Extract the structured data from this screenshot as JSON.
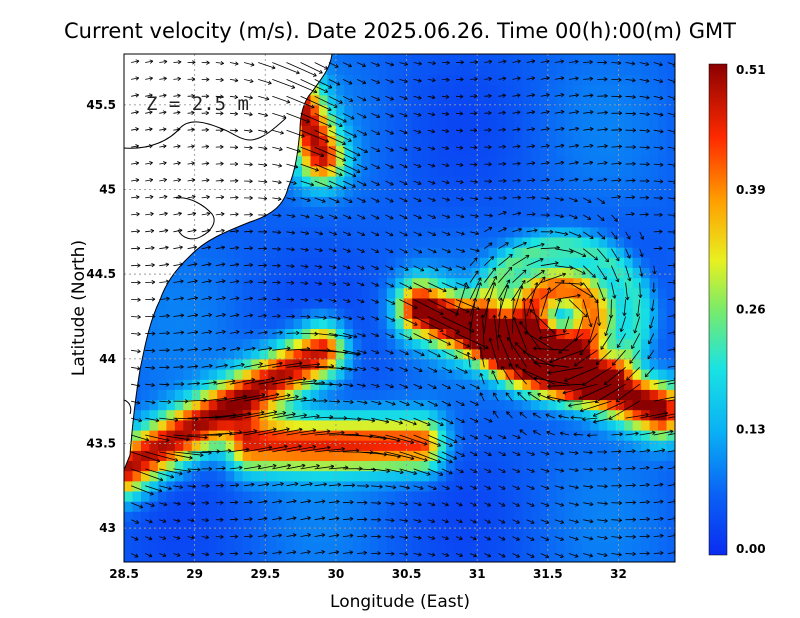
{
  "title": "Current velocity (m/s). Date 2025.06.26. Time 00(h):00(m) GMT",
  "depth_label": "Z = 2.5 m",
  "colors": {
    "low": "#0a4cf0",
    "mid": "#19e3e3",
    "high": "#ffa000",
    "max": "#8b0000",
    "land": "#ffffff",
    "coastline": "#000000",
    "grid": "#9a9a9a"
  },
  "chart_data": {
    "type": "heatmap",
    "xlabel": "Longitude (East)",
    "ylabel": "Latitude (North)",
    "xlim": [
      28.5,
      32.4
    ],
    "ylim": [
      42.8,
      45.8
    ],
    "xticks": [
      "28.5",
      "29",
      "29.5",
      "30",
      "30.5",
      "31",
      "31.5",
      "32"
    ],
    "yticks": [
      "43",
      "43.5",
      "44",
      "44.5",
      "45",
      "45.5"
    ],
    "grid": true,
    "colorbar": {
      "min": 0.0,
      "max": 0.51,
      "tick_labels": [
        "0.51",
        "0.39",
        "0.26",
        "0.13",
        "0.00"
      ]
    },
    "features": [
      {
        "kind": "anticyclonic_eddy",
        "center": [
          31.6,
          44.25
        ],
        "speed": 0.45
      },
      {
        "kind": "jet",
        "from": [
          30.6,
          44.3
        ],
        "to": [
          32.3,
          43.7
        ],
        "speed": 0.48
      },
      {
        "kind": "coastal_current",
        "from": [
          28.5,
          43.35
        ],
        "to": [
          29.9,
          44.05
        ],
        "speed": 0.44
      },
      {
        "kind": "current",
        "from": [
          29.4,
          43.5
        ],
        "to": [
          30.6,
          43.5
        ],
        "speed": 0.38
      },
      {
        "kind": "current",
        "from": [
          29.6,
          45.8
        ],
        "to": [
          29.9,
          45.2
        ],
        "speed": 0.4
      }
    ]
  }
}
